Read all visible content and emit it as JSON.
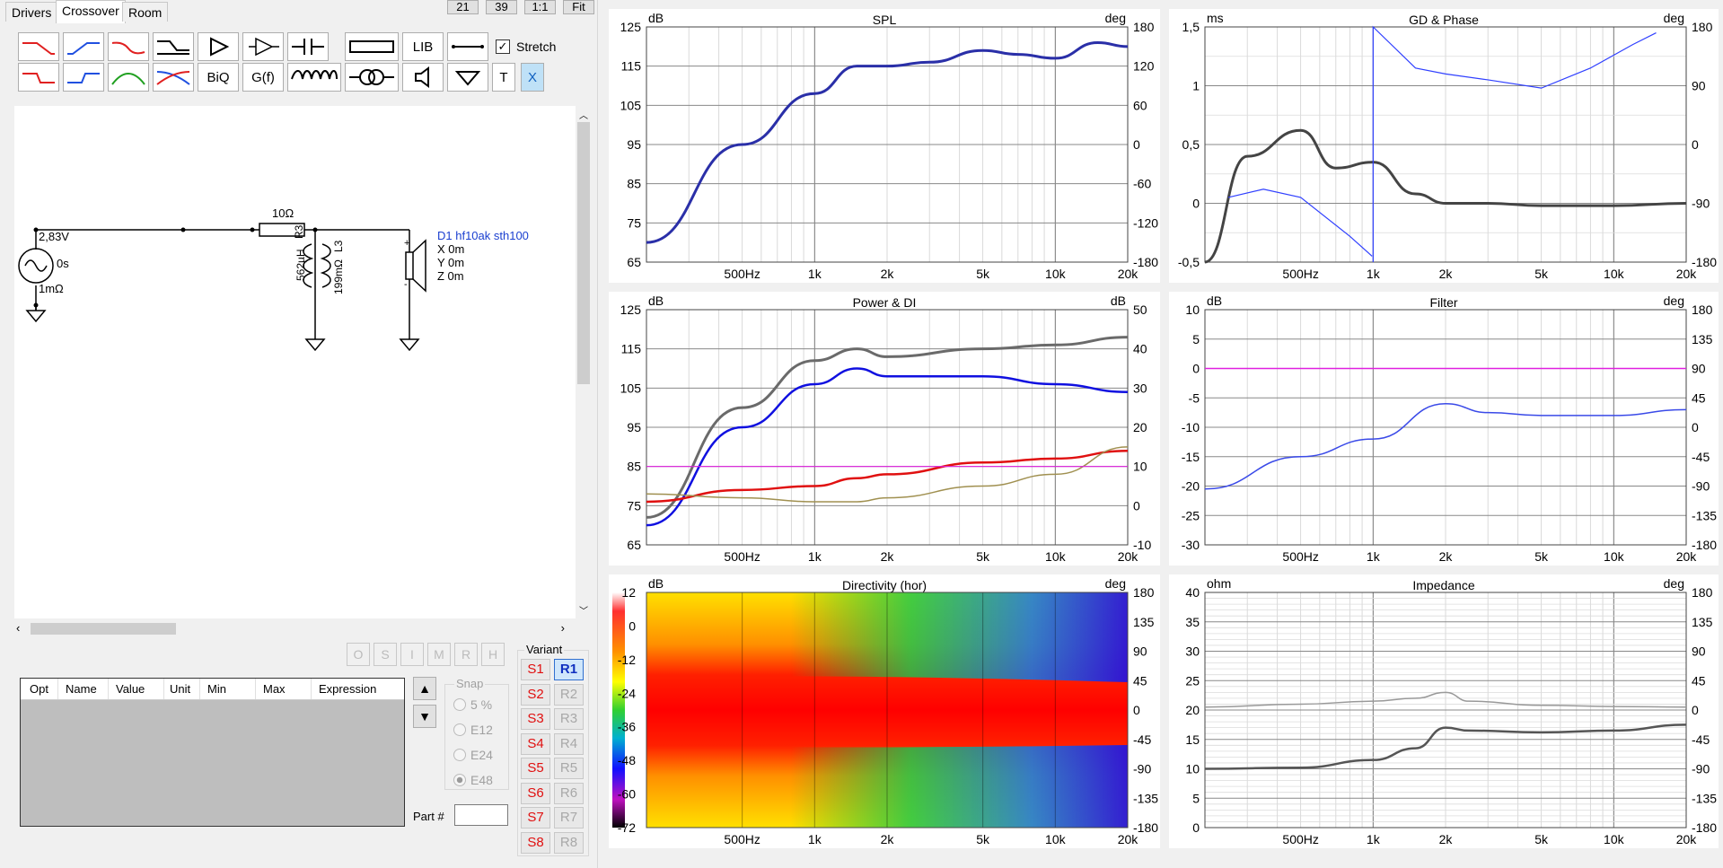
{
  "tabs": [
    "Drivers",
    "Crossover",
    "Room"
  ],
  "top_buttons": [
    "21",
    "39",
    "1:1",
    "Fit"
  ],
  "toolbar": {
    "lib_label": "LIB",
    "biq_label": "BiQ",
    "gf_label": "G(f)",
    "t_label": "T",
    "x_label": "X",
    "stretch_label": "Stretch",
    "stretch_checked": true
  },
  "schematic": {
    "source_voltage": "2,83V",
    "source_delay": "0s",
    "source_impedance": "1mΩ",
    "resistor": "10Ω",
    "cap_label": "R3",
    "cap_value": "562µH",
    "inductor_label": "L3",
    "inductor_value": "199mΩ",
    "driver_name": "D1 hf10ak sth100",
    "driver_x": "X 0m",
    "driver_y": "Y 0m",
    "driver_z": "Z 0m"
  },
  "side_buttons": [
    "O",
    "S",
    "I",
    "M",
    "R",
    "H"
  ],
  "parts_table": {
    "columns": [
      "Opt",
      "Name",
      "Value",
      "Unit",
      "Min",
      "Max",
      "Expression"
    ]
  },
  "snap": {
    "label": "Snap",
    "options": [
      "5 %",
      "E12",
      "E24",
      "E48"
    ],
    "selected": "E48"
  },
  "part_label": "Part #",
  "variant": {
    "label": "Variant",
    "s": [
      "S1",
      "S2",
      "S3",
      "S4",
      "S5",
      "S6",
      "S7",
      "S8"
    ],
    "r": [
      "R1",
      "R2",
      "R3",
      "R4",
      "R5",
      "R6",
      "R7",
      "R8"
    ],
    "active": "R1"
  },
  "freq_ticks": [
    "500Hz",
    "1k",
    "2k",
    "5k",
    "10k",
    "20k"
  ],
  "charts": {
    "spl": {
      "title": "SPL",
      "left_unit": "dB",
      "right_unit": "deg",
      "left_ticks": [
        "125",
        "115",
        "105",
        "95",
        "85",
        "75",
        "65"
      ],
      "right_ticks": [
        "180",
        "120",
        "60",
        "0",
        "-60",
        "-120",
        "-180"
      ]
    },
    "gd": {
      "title": "GD & Phase",
      "left_unit": "ms",
      "right_unit": "deg",
      "left_ticks": [
        "1,5",
        "1",
        "0,5",
        "0",
        "-0,5"
      ],
      "right_ticks": [
        "180",
        "90",
        "0",
        "-90",
        "-180"
      ]
    },
    "power": {
      "title": "Power & DI",
      "left_unit": "dB",
      "right_unit": "dB",
      "left_ticks": [
        "125",
        "115",
        "105",
        "95",
        "85",
        "75",
        "65"
      ],
      "right_ticks": [
        "50",
        "40",
        "30",
        "20",
        "10",
        "0",
        "-10"
      ]
    },
    "filter": {
      "title": "Filter",
      "left_unit": "dB",
      "right_unit": "deg",
      "left_ticks": [
        "10",
        "5",
        "0",
        "-5",
        "-10",
        "-15",
        "-20",
        "-25",
        "-30"
      ],
      "right_ticks": [
        "180",
        "135",
        "90",
        "45",
        "0",
        "-45",
        "-90",
        "-135",
        "-180"
      ]
    },
    "dir": {
      "title": "Directivity (hor)",
      "left_unit": "dB",
      "right_unit": "deg",
      "left_ticks": [
        "12",
        "0",
        "-12",
        "-24",
        "-36",
        "-48",
        "-60",
        "-72"
      ],
      "right_ticks": [
        "180",
        "135",
        "90",
        "45",
        "0",
        "-45",
        "-90",
        "-135",
        "-180"
      ]
    },
    "imp": {
      "title": "Impedance",
      "left_unit": "ohm",
      "right_unit": "deg",
      "left_ticks": [
        "40",
        "35",
        "30",
        "25",
        "20",
        "15",
        "10",
        "5",
        "0"
      ],
      "right_ticks": [
        "180",
        "135",
        "90",
        "45",
        "0",
        "-45",
        "-90",
        "-135",
        "-180"
      ]
    }
  },
  "chart_data": [
    {
      "type": "line",
      "title": "SPL",
      "x": [
        "200",
        "500",
        "1k",
        "1.5k",
        "2k",
        "3k",
        "5k",
        "7k",
        "10k",
        "15k",
        "20k"
      ],
      "series": [
        {
          "values": [
            70,
            95,
            108,
            115,
            115,
            116,
            119,
            118,
            117,
            121,
            120
          ]
        }
      ],
      "ylim": [
        65,
        125
      ]
    },
    {
      "type": "line",
      "title": "GD & Phase",
      "x": [
        "200",
        "300",
        "500",
        "700",
        "1k",
        "1.5k",
        "2k",
        "3k",
        "5k",
        "10k",
        "20k"
      ],
      "series": [
        {
          "values": [
            -0.5,
            0.4,
            0.62,
            0.3,
            0.35,
            0.08,
            0.0,
            0.0,
            -0.02,
            -0.02,
            0.0
          ]
        }
      ],
      "ylim": [
        -0.5,
        1.5
      ]
    },
    {
      "type": "line",
      "title": "Power & DI",
      "x": [
        "200",
        "500",
        "1k",
        "1.5k",
        "2k",
        "5k",
        "10k",
        "20k"
      ],
      "series": [
        {
          "values": [
            72,
            100,
            112,
            115,
            113,
            115,
            116,
            118
          ]
        },
        {
          "values": [
            70,
            95,
            106,
            110,
            108,
            108,
            106,
            104
          ]
        },
        {
          "values": [
            76,
            79,
            80,
            82,
            83,
            86,
            87,
            89
          ]
        },
        {
          "values": [
            78,
            77,
            76,
            76,
            77,
            80,
            83,
            90
          ]
        },
        {
          "values": [
            85,
            85,
            85,
            85,
            85,
            85,
            85,
            85
          ]
        }
      ],
      "ylim": [
        65,
        125
      ]
    },
    {
      "type": "line",
      "title": "Filter",
      "x": [
        "200",
        "500",
        "1k",
        "2k",
        "3k",
        "5k",
        "10k",
        "20k"
      ],
      "series": [
        {
          "values": [
            -20.5,
            -15,
            -12,
            -6,
            -7.5,
            -8,
            -8,
            -7
          ]
        },
        {
          "values": [
            0,
            0,
            0,
            0,
            0,
            0,
            0,
            0
          ]
        }
      ],
      "ylim": [
        -30,
        10
      ]
    },
    {
      "type": "heatmap",
      "title": "Directivity (hor)",
      "xlim": [
        "200Hz",
        "20k"
      ],
      "ylim": [
        -180,
        180
      ],
      "zlim": [
        -72,
        12
      ]
    },
    {
      "type": "line",
      "title": "Impedance",
      "x": [
        "200",
        "500",
        "1k",
        "1.5k",
        "2k",
        "2.5k",
        "5k",
        "10k",
        "20k"
      ],
      "series": [
        {
          "values": [
            10,
            10.2,
            11.5,
            13.5,
            17,
            16.5,
            16.2,
            16.5,
            17.5
          ]
        },
        {
          "values": [
            20.5,
            21,
            21.5,
            22,
            23,
            21.5,
            20.8,
            20.6,
            20.5
          ]
        }
      ],
      "ylim": [
        0,
        40
      ]
    }
  ]
}
